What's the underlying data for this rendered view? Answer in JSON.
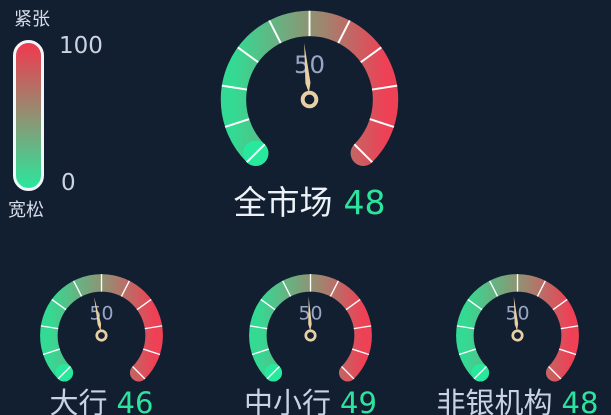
{
  "palette": {
    "background": "#121f31",
    "arc_green": "#33da93",
    "arc_mid_olive": "#8e9474",
    "arc_red": "#ee4156",
    "start_cap_green": "#27e89d",
    "needle_tan": "#e9cfa4",
    "tick_white": "#ffffff",
    "axis_label_gray": "#98a6c4",
    "title_light": "#eef2f8",
    "value_green": "#2be49d"
  },
  "legend": {
    "high_label": "紧张",
    "low_label": "宽松",
    "max": 100,
    "min": 0
  },
  "chart_data": {
    "type": "gauge",
    "min": 0,
    "max": 100,
    "start_angle": 225,
    "end_angle": -45,
    "split_number": 10,
    "visible_axis_label": "50",
    "color_stops": [
      {
        "pos": 0,
        "color": "#33da93"
      },
      {
        "pos": 0.5,
        "color": "#8e9474"
      },
      {
        "pos": 1,
        "color": "#ee4156"
      }
    ],
    "gauges": [
      {
        "title": "全市场",
        "value": 48
      },
      {
        "title": "大行",
        "value": 46
      },
      {
        "title": "中小行",
        "value": 49
      },
      {
        "title": "非银机构",
        "value": 48
      }
    ]
  }
}
